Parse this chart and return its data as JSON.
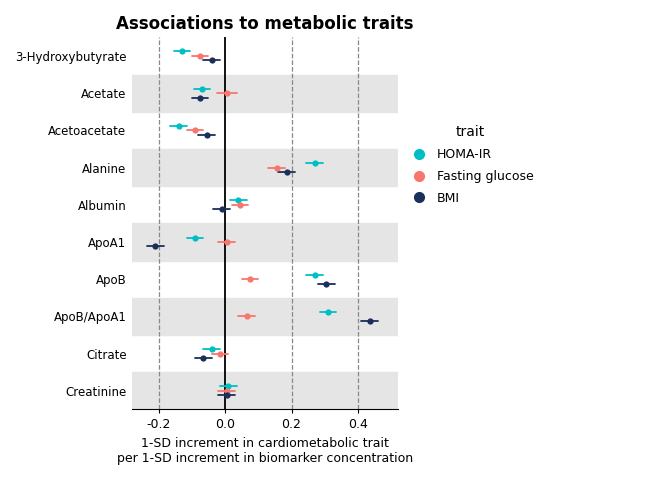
{
  "title": "Associations to metabolic traits",
  "xlabel_line1": "1-SD increment in cardiometabolic trait",
  "xlabel_line2": "per 1-SD increment in biomarker concentration",
  "xlim": [
    -0.28,
    0.52
  ],
  "xticks": [
    -0.2,
    0.0,
    0.2,
    0.4
  ],
  "xticklabels": [
    "-0.2",
    "0.0",
    "0.2",
    "0.4"
  ],
  "vlines": [
    -0.2,
    0.2,
    0.4
  ],
  "biomarkers": [
    "3-Hydroxybutyrate",
    "Acetate",
    "Acetoacetate",
    "Alanine",
    "Albumin",
    "ApoA1",
    "ApoB",
    "ApoB/ApoA1",
    "Citrate",
    "Creatinine"
  ],
  "shaded_rows": [
    1,
    3,
    5,
    7,
    9
  ],
  "colors": {
    "HOMA-IR": "#00BFC4",
    "Fasting glucose": "#F8766D",
    "BMI": "#1A2F5A"
  },
  "data": {
    "HOMA-IR": {
      "3-Hydroxybutyrate": {
        "mean": -0.13,
        "lo": -0.155,
        "hi": -0.105
      },
      "Acetate": {
        "mean": -0.07,
        "lo": -0.095,
        "hi": -0.045
      },
      "Acetoacetate": {
        "mean": -0.14,
        "lo": -0.165,
        "hi": -0.115
      },
      "Alanine": {
        "mean": 0.27,
        "lo": 0.245,
        "hi": 0.295
      },
      "Albumin": {
        "mean": 0.04,
        "lo": 0.015,
        "hi": 0.065
      },
      "ApoA1": {
        "mean": -0.09,
        "lo": -0.115,
        "hi": -0.065
      },
      "ApoB": {
        "mean": 0.27,
        "lo": 0.245,
        "hi": 0.295
      },
      "ApoB/ApoA1": {
        "mean": 0.31,
        "lo": 0.285,
        "hi": 0.335
      },
      "Citrate": {
        "mean": -0.04,
        "lo": -0.065,
        "hi": -0.015
      },
      "Creatinine": {
        "mean": 0.01,
        "lo": -0.015,
        "hi": 0.035
      }
    },
    "Fasting glucose": {
      "3-Hydroxybutyrate": {
        "mean": -0.075,
        "lo": -0.1,
        "hi": -0.05
      },
      "Acetate": {
        "mean": 0.005,
        "lo": -0.025,
        "hi": 0.035
      },
      "Acetoacetate": {
        "mean": -0.09,
        "lo": -0.115,
        "hi": -0.065
      },
      "Alanine": {
        "mean": 0.155,
        "lo": 0.13,
        "hi": 0.18
      },
      "Albumin": {
        "mean": 0.045,
        "lo": 0.02,
        "hi": 0.07
      },
      "ApoA1": {
        "mean": 0.005,
        "lo": -0.02,
        "hi": 0.03
      },
      "ApoB": {
        "mean": 0.075,
        "lo": 0.05,
        "hi": 0.1
      },
      "ApoB/ApoA1": {
        "mean": 0.065,
        "lo": 0.04,
        "hi": 0.09
      },
      "Citrate": {
        "mean": -0.015,
        "lo": -0.04,
        "hi": 0.01
      },
      "Creatinine": {
        "mean": 0.005,
        "lo": -0.02,
        "hi": 0.03
      }
    },
    "BMI": {
      "3-Hydroxybutyrate": {
        "mean": -0.04,
        "lo": -0.065,
        "hi": -0.015
      },
      "Acetate": {
        "mean": -0.075,
        "lo": -0.1,
        "hi": -0.05
      },
      "Acetoacetate": {
        "mean": -0.055,
        "lo": -0.08,
        "hi": -0.03
      },
      "Alanine": {
        "mean": 0.185,
        "lo": 0.16,
        "hi": 0.21
      },
      "Albumin": {
        "mean": -0.01,
        "lo": -0.035,
        "hi": 0.015
      },
      "ApoA1": {
        "mean": -0.21,
        "lo": -0.235,
        "hi": -0.185
      },
      "ApoB": {
        "mean": 0.305,
        "lo": 0.28,
        "hi": 0.33
      },
      "ApoB/ApoA1": {
        "mean": 0.435,
        "lo": 0.41,
        "hi": 0.46
      },
      "Citrate": {
        "mean": -0.065,
        "lo": -0.09,
        "hi": -0.04
      },
      "Creatinine": {
        "mean": 0.005,
        "lo": -0.02,
        "hi": 0.03
      }
    }
  },
  "legend_title": "trait",
  "legend_entries": [
    "HOMA-IR",
    "Fasting glucose",
    "BMI"
  ],
  "row_offsets": {
    "HOMA-IR": 0.12,
    "Fasting glucose": 0.0,
    "BMI": -0.12
  },
  "background_color": "#FFFFFF",
  "shade_color": "#E5E5E5"
}
